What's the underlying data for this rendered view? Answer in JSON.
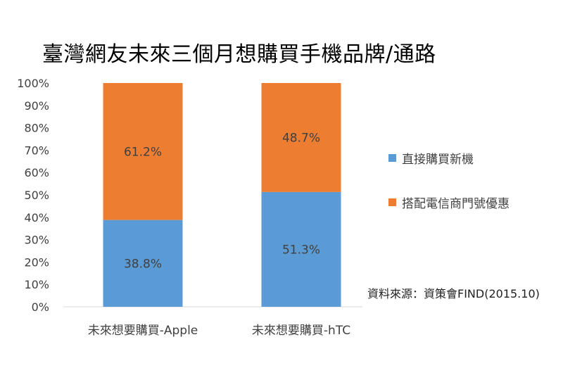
{
  "chart_data": {
    "type": "bar",
    "stacked": true,
    "percent": true,
    "title": "臺灣網友未來三個月想購買手機品牌/通路",
    "categories": [
      "未來想要購買-Apple",
      "未來想要購買-hTC"
    ],
    "series": [
      {
        "name": "直接購買新機",
        "values": [
          38.8,
          51.3
        ],
        "labels": [
          "38.8%",
          "51.3%"
        ],
        "color": "#5b9bd5"
      },
      {
        "name": "搭配電信商門號優惠",
        "values": [
          61.2,
          48.7
        ],
        "labels": [
          "61.2%",
          "48.7%"
        ],
        "color": "#ed7d31"
      }
    ],
    "ylim": [
      0,
      100
    ],
    "yticks": [
      "0%",
      "10%",
      "20%",
      "30%",
      "40%",
      "50%",
      "60%",
      "70%",
      "80%",
      "90%",
      "100%"
    ],
    "xlabel": "",
    "ylabel": "",
    "grid": false,
    "legend": "right",
    "annotation": "資料來源：資策會FIND(2015.10)"
  }
}
